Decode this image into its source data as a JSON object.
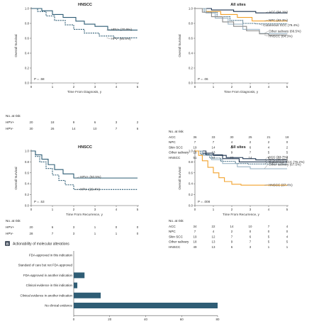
{
  "colors": {
    "dark": "#2f5d75",
    "navy": "#1f3550",
    "orange": "#f2a22c",
    "gray": "#8a8a8a",
    "light": "#9db6c6"
  },
  "chart_data": [
    {
      "id": "A1",
      "type": "line",
      "title": "HNSCC",
      "xlabel": "Time From Diagnosis, y",
      "ylabel": "Overall Survival",
      "xlim": [
        0,
        5
      ],
      "ylim": [
        0,
        1.0
      ],
      "xticks": [
        0,
        1,
        2,
        3,
        4,
        5
      ],
      "yticks": [
        0,
        0.2,
        0.4,
        0.6,
        0.8,
        1.0
      ],
      "pvalue": "P = .58",
      "series": [
        {
          "name": "HPV+",
          "callout": "HPV+ (70.9%)",
          "color": "dark",
          "dash": "",
          "points": [
            [
              0,
              1
            ],
            [
              0.5,
              0.97
            ],
            [
              1.0,
              0.92
            ],
            [
              1.5,
              0.88
            ],
            [
              2.1,
              0.83
            ],
            [
              2.5,
              0.79
            ],
            [
              3.0,
              0.76
            ],
            [
              3.6,
              0.71
            ],
            [
              5.0,
              0.71
            ]
          ],
          "callout_pos": [
            3.75,
            0.705
          ]
        },
        {
          "name": "HPV-",
          "callout": "HPV- (60.5%)",
          "color": "dark",
          "dash": "2 1.2",
          "points": [
            [
              0,
              1
            ],
            [
              0.3,
              0.96
            ],
            [
              0.7,
              0.9
            ],
            [
              1.1,
              0.84
            ],
            [
              1.6,
              0.78
            ],
            [
              2.0,
              0.72
            ],
            [
              2.5,
              0.67
            ],
            [
              3.2,
              0.63
            ],
            [
              3.9,
              0.605
            ],
            [
              5.0,
              0.605
            ]
          ],
          "callout_pos": [
            3.75,
            0.58
          ]
        }
      ],
      "risk": {
        "title": "No. at risk",
        "rows": [
          {
            "label": "HPV+",
            "values": [
              "20",
              "18",
              "9",
              "6",
              "3",
              "2"
            ]
          },
          {
            "label": "HPV-",
            "values": [
              "30",
              "26",
              "14",
              "10",
              "7",
              "6"
            ]
          }
        ]
      }
    },
    {
      "id": "A2",
      "type": "line",
      "title": "All sites",
      "xlabel": "Time From Diagnosis, y",
      "ylabel": "Overall Survival",
      "xlim": [
        0,
        5
      ],
      "ylim": [
        0,
        1.0
      ],
      "xticks": [
        0,
        1,
        2,
        3,
        4,
        5
      ],
      "yticks": [
        0,
        0.2,
        0.4,
        0.6,
        0.8,
        1.0
      ],
      "pvalue": "P = .06",
      "series": [
        {
          "name": "ACC",
          "callout": "ACC (94.1%)",
          "color": "navy",
          "dash": "",
          "points": [
            [
              0,
              1
            ],
            [
              0.9,
              0.98
            ],
            [
              2.1,
              0.96
            ],
            [
              3.3,
              0.941
            ],
            [
              5,
              0.941
            ]
          ],
          "callout_pos": [
            4.0,
            0.94
          ]
        },
        {
          "name": "NPC",
          "callout": "NPC (83.3%)",
          "color": "orange",
          "dash": "",
          "points": [
            [
              0,
              1
            ],
            [
              0.6,
              0.96
            ],
            [
              1.4,
              0.92
            ],
            [
              2.3,
              0.88
            ],
            [
              3.1,
              0.833
            ],
            [
              5,
              0.833
            ]
          ],
          "callout_pos": [
            4.0,
            0.83
          ]
        },
        {
          "name": "Cutaneous SCC",
          "callout": "Cutaneous SCC (79.4%)",
          "color": "dark",
          "dash": "1.6 1",
          "points": [
            [
              0,
              1
            ],
            [
              0.5,
              0.95
            ],
            [
              1.2,
              0.89
            ],
            [
              1.9,
              0.84
            ],
            [
              2.6,
              0.8
            ],
            [
              3.3,
              0.794
            ],
            [
              5,
              0.794
            ]
          ],
          "callout_pos": [
            3.7,
            0.76
          ]
        },
        {
          "name": "Other salivary",
          "callout": "Other salivary (66.5%)",
          "color": "light",
          "dash": "",
          "points": [
            [
              0,
              1
            ],
            [
              0.6,
              0.94
            ],
            [
              1.1,
              0.87
            ],
            [
              1.8,
              0.79
            ],
            [
              2.6,
              0.72
            ],
            [
              3.5,
              0.665
            ],
            [
              5,
              0.665
            ]
          ],
          "callout_pos": [
            4.0,
            0.68
          ]
        },
        {
          "name": "HNSCC",
          "callout": "HNSCC (64.3%)",
          "color": "gray",
          "dash": "",
          "points": [
            [
              0,
              1
            ],
            [
              0.4,
              0.95
            ],
            [
              0.9,
              0.89
            ],
            [
              1.5,
              0.82
            ],
            [
              2.1,
              0.76
            ],
            [
              2.8,
              0.7
            ],
            [
              3.5,
              0.66
            ],
            [
              4.0,
              0.643
            ],
            [
              5,
              0.643
            ]
          ],
          "callout_pos": [
            4.0,
            0.615
          ]
        }
      ],
      "risk": {
        "title": "No. at risk",
        "rows": [
          {
            "label": "ACC",
            "values": [
              "36",
              "33",
              "30",
              "25",
              "21",
              "18"
            ]
          },
          {
            "label": "NPC",
            "values": [
              "7",
              "7",
              "4",
              "2",
              "2",
              "0"
            ]
          },
          {
            "label": "Skin SCC",
            "values": [
              "19",
              "14",
              "8",
              "6",
              "4",
              "2"
            ]
          },
          {
            "label": "Other salivary",
            "values": [
              "18",
              "13",
              "9",
              "7",
              "5",
              "5"
            ]
          },
          {
            "label": "HNSCC",
            "values": [
              "51",
              "44",
              "23",
              "14",
              "9",
              "7"
            ]
          }
        ]
      }
    },
    {
      "id": "A3",
      "type": "line",
      "title": "HNSCC",
      "xlabel": "Time From Recurrence, y",
      "ylabel": "Overall Survival",
      "xlim": [
        0,
        5
      ],
      "ylim": [
        0,
        1.0
      ],
      "xticks": [
        0,
        1,
        2,
        3,
        4,
        5
      ],
      "yticks": [
        0,
        0.2,
        0.4,
        0.6,
        0.8,
        1.0
      ],
      "pvalue": "P = .53",
      "series": [
        {
          "name": "HPV+",
          "callout": "HPV+ (50.5%)",
          "color": "dark",
          "dash": "",
          "points": [
            [
              0,
              1
            ],
            [
              0.2,
              0.93
            ],
            [
              0.5,
              0.85
            ],
            [
              0.8,
              0.75
            ],
            [
              1.1,
              0.66
            ],
            [
              1.5,
              0.58
            ],
            [
              2.0,
              0.505
            ],
            [
              5,
              0.505
            ]
          ],
          "callout_pos": [
            2.3,
            0.505
          ]
        },
        {
          "name": "HPV-",
          "callout": "HPV- (29.4%)",
          "color": "dark",
          "dash": "2 1.2",
          "points": [
            [
              0,
              1
            ],
            [
              0.2,
              0.9
            ],
            [
              0.4,
              0.8
            ],
            [
              0.7,
              0.68
            ],
            [
              1.0,
              0.56
            ],
            [
              1.3,
              0.46
            ],
            [
              1.6,
              0.38
            ],
            [
              2.0,
              0.294
            ],
            [
              5,
              0.294
            ]
          ],
          "callout_pos": [
            2.3,
            0.28
          ]
        }
      ],
      "risk": {
        "title": "No. at risk",
        "rows": [
          {
            "label": "HPV+",
            "values": [
              "20",
              "6",
              "3",
              "1",
              "0",
              "0"
            ]
          },
          {
            "label": "HPV-",
            "values": [
              "28",
              "7",
              "3",
              "1",
              "1",
              "0"
            ]
          }
        ]
      }
    },
    {
      "id": "A4",
      "type": "line",
      "title": "All sites",
      "xlabel": "Time From Recurrence, y",
      "ylabel": "Overall Survival",
      "xlim": [
        0,
        5
      ],
      "ylim": [
        0,
        1.0
      ],
      "xticks": [
        0,
        1,
        2,
        3,
        4,
        5
      ],
      "yticks": [
        0,
        0.2,
        0.4,
        0.6,
        0.8,
        1.0
      ],
      "pvalue": "P = .008",
      "series": [
        {
          "name": "ACC",
          "callout": "ACC (83.7%)",
          "color": "navy",
          "dash": "",
          "points": [
            [
              0,
              1
            ],
            [
              0.4,
              0.96
            ],
            [
              1.0,
              0.92
            ],
            [
              1.7,
              0.88
            ],
            [
              2.6,
              0.86
            ],
            [
              3.3,
              0.837
            ],
            [
              5,
              0.837
            ]
          ],
          "callout_pos": [
            4.0,
            0.87
          ]
        },
        {
          "name": "NPC",
          "callout": "NPC (80.0%)",
          "color": "navy",
          "dash": "",
          "points": [
            [
              0,
              1
            ],
            [
              0.6,
              0.93
            ],
            [
              1.5,
              0.86
            ],
            [
              2.4,
              0.8
            ],
            [
              5,
              0.8
            ]
          ],
          "callout_pos": [
            4.0,
            0.825
          ]
        },
        {
          "name": "Cutaneous SCC",
          "callout": "Cutaneous SCC (76.2%)",
          "color": "dark",
          "dash": "1.6 1",
          "points": [
            [
              0,
              1
            ],
            [
              0.3,
              0.94
            ],
            [
              0.8,
              0.87
            ],
            [
              1.4,
              0.81
            ],
            [
              2.2,
              0.77
            ],
            [
              2.9,
              0.762
            ],
            [
              5,
              0.762
            ]
          ],
          "callout_pos": [
            4.0,
            0.78
          ]
        },
        {
          "name": "Other salivary",
          "callout": "Other salivary (67.5%)",
          "color": "light",
          "dash": "",
          "points": [
            [
              0,
              1
            ],
            [
              0.4,
              0.92
            ],
            [
              0.9,
              0.84
            ],
            [
              1.5,
              0.77
            ],
            [
              2.3,
              0.71
            ],
            [
              3.0,
              0.675
            ],
            [
              5,
              0.675
            ]
          ],
          "callout_pos": [
            4.0,
            0.735
          ]
        },
        {
          "name": "HNSCC",
          "callout": "HNSCC (37.4%)",
          "color": "orange",
          "dash": "",
          "points": [
            [
              0,
              1
            ],
            [
              0.2,
              0.92
            ],
            [
              0.4,
              0.82
            ],
            [
              0.7,
              0.7
            ],
            [
              1.0,
              0.6
            ],
            [
              1.3,
              0.51
            ],
            [
              1.6,
              0.44
            ],
            [
              2.0,
              0.39
            ],
            [
              2.5,
              0.374
            ],
            [
              5,
              0.374
            ]
          ],
          "callout_pos": [
            4.0,
            0.36
          ]
        }
      ],
      "risk": {
        "title": "No. at risk",
        "rows": [
          {
            "label": "ACC",
            "values": [
              "34",
              "22",
              "14",
              "10",
              "7",
              "4"
            ]
          },
          {
            "label": "NPC",
            "values": [
              "7",
              "4",
              "2",
              "0",
              "0",
              "0"
            ]
          },
          {
            "label": "Skin SCC",
            "values": [
              "19",
              "12",
              "7",
              "6",
              "5",
              "4"
            ]
          },
          {
            "label": "Other salivary",
            "values": [
              "18",
              "13",
              "9",
              "7",
              "5",
              "5"
            ]
          },
          {
            "label": "HNSCC",
            "values": [
              "49",
              "13",
              "6",
              "3",
              "1",
              "1"
            ]
          }
        ]
      }
    },
    {
      "id": "B",
      "type": "bar",
      "orientation": "horizontal",
      "badge": "B",
      "section_title": "Actionability of molecular alterations",
      "categories": [
        "FDA-approved in this indication",
        "Standard of care but not FDA approved",
        "FDA-approved in another indication",
        "Clinical evidence in this indication",
        "Clinical evidence in another indication",
        "No clinical evidence"
      ],
      "values": [
        0,
        0,
        6,
        2,
        15,
        80
      ],
      "xlim": [
        0,
        80
      ],
      "xticks": [
        0,
        20,
        40,
        60,
        80
      ]
    }
  ]
}
